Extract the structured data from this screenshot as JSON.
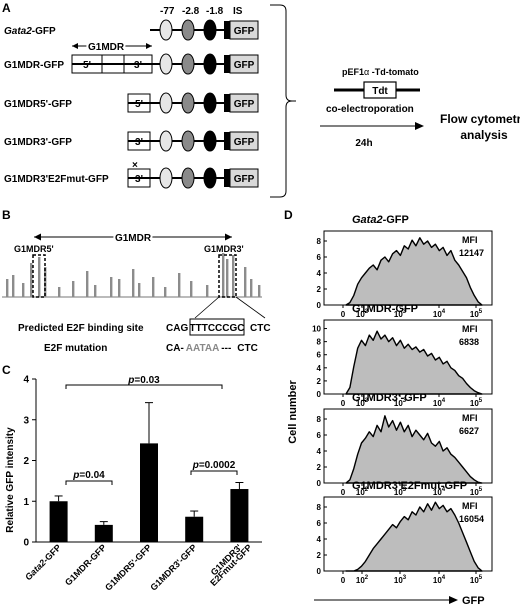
{
  "panel_letters": {
    "a": "A",
    "b": "B",
    "c": "C",
    "d": "D"
  },
  "panel_a": {
    "header": {
      "p77": "-77",
      "p28": "-2.8",
      "p18": "-1.8",
      "is": "IS"
    },
    "g1mdr_span_label": "G1MDR",
    "constructs": [
      {
        "name_italic": "Gata2",
        "name_rest": "-GFP",
        "boxes": []
      },
      {
        "name_italic": "",
        "name_rest": "G1MDR-GFP",
        "boxes": [
          "5'",
          "3'"
        ]
      },
      {
        "name_italic": "",
        "name_rest": "G1MDR5'-GFP",
        "boxes": [
          "5'"
        ]
      },
      {
        "name_italic": "",
        "name_rest": "G1MDR3'-GFP",
        "boxes": [
          "3'"
        ]
      },
      {
        "name_italic": "",
        "name_rest": "G1MDR3'E2Fmut-GFP",
        "boxes": [
          "3'"
        ],
        "mutation_mark": "×"
      }
    ],
    "gfp_label": "GFP",
    "plasmid": "pEF1",
    "alpha": "α",
    "plasmid_rest": " -Td-tomato",
    "tdt": "Tdt",
    "method": "co-electroporation",
    "time": "24h",
    "readout_line1": "Flow cytometry",
    "readout_line2": "analysis"
  },
  "panel_b": {
    "span_label": "G1MDR",
    "left_label": "G1MDR5'",
    "right_label": "G1MDR3'",
    "site_label": "Predicted E2F binding site",
    "site_seq_left": "CAG",
    "site_seq_box": "TTTCCCGC",
    "site_seq_right": "CTC",
    "mut_label": "E2F mutation",
    "mut_seq_left": "CA-",
    "mut_seq_mid": "AATAA",
    "mut_seq_dash": "---",
    "mut_seq_right": "CTC"
  },
  "panel_c": {
    "ylabel": "Relative GFP intensity",
    "brackets": [
      {
        "text_p": "p",
        "text_v": "=0.03"
      },
      {
        "text_p": "p",
        "text_v": "=0.04"
      },
      {
        "text_p": "p",
        "text_v": "=0.0002"
      }
    ],
    "chart_data": {
      "type": "bar",
      "categories": [
        "Gata2-GFP",
        "G1MDR-GFP",
        "G1MDR5'-GFP",
        "G1MDR3'-GFP",
        "G1MDR3' E2Fmut-GFP"
      ],
      "category_display": [
        {
          "l1": "Gata2-GFP",
          "l2": "",
          "italic": "Gata2"
        },
        {
          "l1": "G1MDR-GFP",
          "l2": ""
        },
        {
          "l1": "G1MDR5'-GFP",
          "l2": ""
        },
        {
          "l1": "G1MDR3'-GFP",
          "l2": ""
        },
        {
          "l1": "G1MDR3'",
          "l2": "E2Fmut-GFP"
        }
      ],
      "values": [
        1.0,
        0.42,
        2.42,
        0.62,
        1.3
      ],
      "errors": [
        0.13,
        0.08,
        1.0,
        0.14,
        0.16
      ],
      "ylim": [
        0,
        4
      ],
      "yticks": [
        "0",
        "1",
        "2",
        "3",
        "4"
      ],
      "ylabel": "Relative GFP intensity"
    }
  },
  "panel_d": {
    "ylabel": "Cell number",
    "xlabel": "GFP",
    "mfi_label": "MFI",
    "chart_data": {
      "type": "area",
      "xticks": [
        "0",
        "10",
        "10",
        "10",
        "10"
      ],
      "xtick_exps": [
        "",
        "2",
        "3",
        "4",
        "5"
      ],
      "histograms": [
        {
          "title_italic": "Gata2",
          "title_rest": "-GFP",
          "mfi": "12147",
          "yticks": [
            "0",
            "2",
            "4",
            "6",
            "8"
          ],
          "ymax": 9,
          "profile": [
            0,
            0.3,
            1.2,
            2.6,
            3.4,
            4.0,
            4.6,
            5.0,
            4.4,
            5.6,
            6.0,
            5.4,
            6.4,
            6.8,
            6.2,
            7.4,
            7.0,
            8.1,
            7.4,
            8.4,
            7.6,
            8.0,
            7.2,
            7.6,
            6.8,
            7.2,
            6.2,
            6.8,
            5.6,
            5.0,
            4.2,
            3.4,
            2.2,
            1.2,
            0.4,
            0
          ]
        },
        {
          "title_italic": "",
          "title_rest": "G1MDR-GFP",
          "mfi": "6838",
          "yticks": [
            "0",
            "2",
            "4",
            "6",
            "8",
            "10"
          ],
          "ymax": 11,
          "profile": [
            0,
            1.0,
            4.2,
            7.0,
            8.2,
            7.4,
            9.0,
            8.2,
            9.6,
            8.4,
            9.0,
            8.0,
            8.6,
            7.4,
            8.2,
            7.0,
            7.6,
            6.8,
            7.2,
            6.4,
            6.8,
            5.8,
            6.2,
            5.2,
            5.6,
            4.6,
            5.0,
            4.0,
            3.6,
            2.8,
            2.4,
            1.6,
            1.0,
            0.5,
            0.2,
            0
          ]
        },
        {
          "title_italic": "",
          "title_rest": "G1MDR3'-GFP",
          "mfi": "6627",
          "yticks": [
            "0",
            "2",
            "4",
            "6",
            "8"
          ],
          "ymax": 9,
          "profile": [
            0,
            0.4,
            1.8,
            3.6,
            5.0,
            5.6,
            6.4,
            5.8,
            7.2,
            6.4,
            8.4,
            7.0,
            7.8,
            6.6,
            7.6,
            6.4,
            7.2,
            5.8,
            6.6,
            6.0,
            5.4,
            6.2,
            5.0,
            4.6,
            5.2,
            4.0,
            4.4,
            3.6,
            3.2,
            2.6,
            2.0,
            1.4,
            0.8,
            0.4,
            0.1,
            0
          ]
        },
        {
          "title_italic": "",
          "title_rest": "G1MDR3'E2Fmut-GFP",
          "mfi": "16054",
          "yticks": [
            "0",
            "2",
            "4",
            "6",
            "8"
          ],
          "ymax": 9,
          "profile": [
            0,
            0,
            0,
            0.2,
            0.6,
            1.2,
            2.0,
            2.8,
            3.4,
            4.0,
            4.6,
            5.2,
            5.8,
            5.4,
            6.2,
            6.8,
            6.4,
            7.4,
            7.0,
            8.0,
            7.4,
            8.4,
            7.6,
            8.6,
            7.8,
            8.2,
            7.4,
            7.8,
            7.0,
            6.0,
            4.8,
            3.6,
            2.4,
            1.2,
            0.4,
            0
          ]
        }
      ]
    }
  },
  "colors": {
    "ideal_fill": "#c8c8c8",
    "hist_fill": "#bdbdbd",
    "black": "#000000",
    "grey_text": "#888888"
  }
}
